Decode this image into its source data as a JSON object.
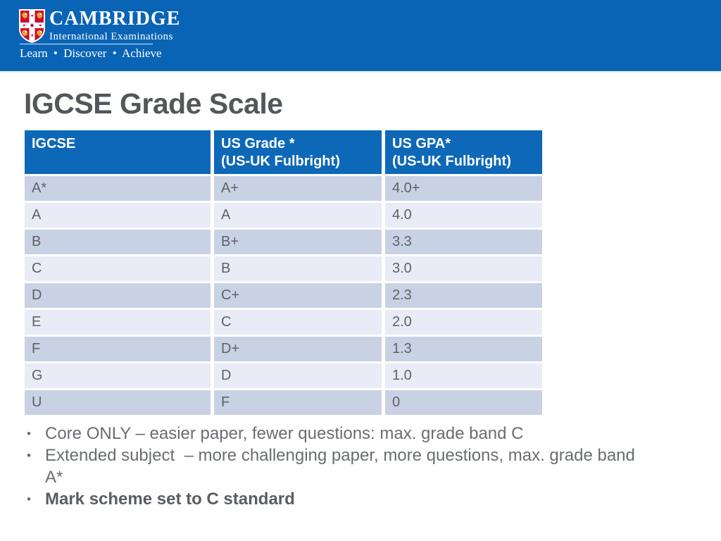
{
  "banner": {
    "brand_title": "CAMBRIDGE",
    "brand_subtitle": "International Examinations",
    "tagline": "Learn • Discover • Achieve"
  },
  "page_title": "IGCSE Grade Scale",
  "table": {
    "headers": [
      {
        "line1": "IGCSE",
        "line2": ""
      },
      {
        "line1": "US Grade *",
        "line2": "(US-UK Fulbright)"
      },
      {
        "line1": "US GPA*",
        "line2": "(US-UK Fulbright)"
      }
    ],
    "rows": [
      [
        "A*",
        "A+",
        "4.0+"
      ],
      [
        "A",
        "A",
        "4.0"
      ],
      [
        "B",
        "B+",
        "3.3"
      ],
      [
        "C",
        "B",
        "3.0"
      ],
      [
        "D",
        "C+",
        "2.3"
      ],
      [
        "E",
        "C",
        "2.0"
      ],
      [
        "F",
        "D+",
        "1.3"
      ],
      [
        "G",
        "D",
        "1.0"
      ],
      [
        "U",
        "F",
        "0"
      ]
    ]
  },
  "bullets": [
    {
      "text": "Core ONLY – easier paper, fewer questions: max. grade band C",
      "bold": false
    },
    {
      "text": "Extended subject  – more challenging paper, more questions, max. grade band A*",
      "bold": false
    },
    {
      "text": "Mark scheme set to C standard",
      "bold": true
    }
  ],
  "colors": {
    "banner_blue": "#0a64b6",
    "table_header_blue": "#0e68b8",
    "row_dark": "#c9d2e4",
    "row_light": "#e9ecf6",
    "title_gray": "#53575c",
    "table_text_gray": "#5d6268",
    "bullet_text_gray": "#696d72",
    "crest_red": "#cf0a2c",
    "crest_gold": "#e8a33d"
  }
}
